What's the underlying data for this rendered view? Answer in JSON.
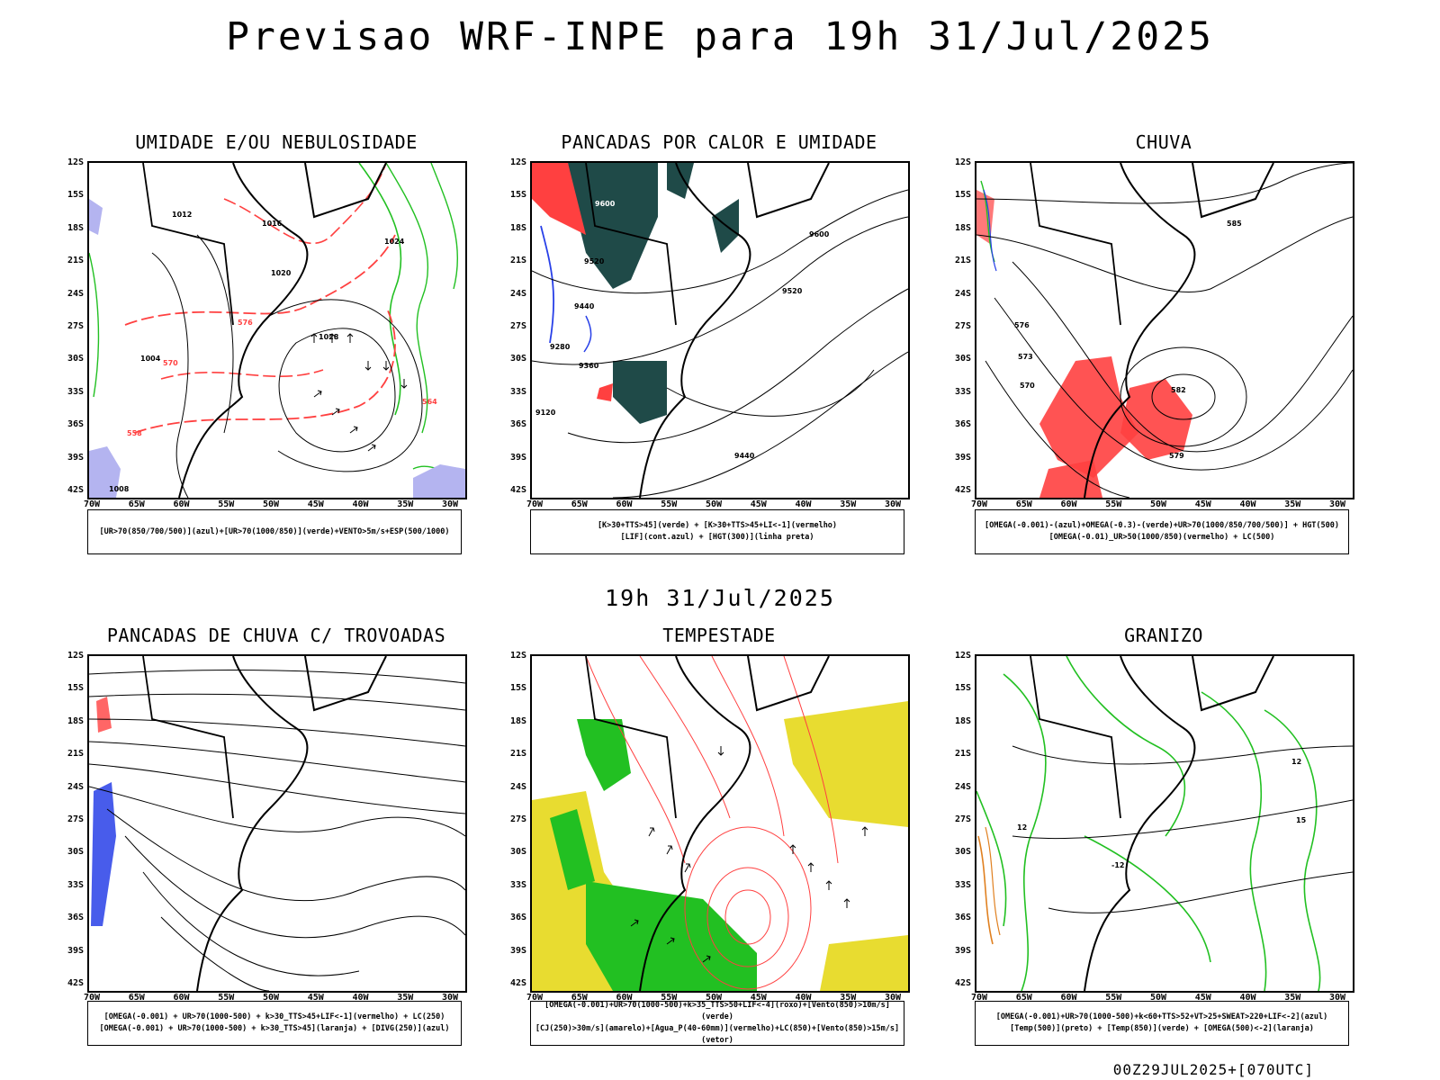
{
  "title": "Previsao WRF-INPE  para 19h 31/Jul/2025",
  "subtitle": "19h 31/Jul/2025",
  "footer": "00Z29JUL2025+[070UTC]",
  "lat_labels": [
    "12S",
    "15S",
    "18S",
    "21S",
    "24S",
    "27S",
    "30S",
    "33S",
    "36S",
    "39S",
    "42S"
  ],
  "lon_labels": [
    "70W",
    "65W",
    "60W",
    "55W",
    "50W",
    "45W",
    "40W",
    "35W",
    "30W"
  ],
  "panels": [
    {
      "title": "UMIDADE E/OU NEBULOSIDADE",
      "legend": [
        "[UR>70(850/700/500)](azul)+[UR>70(1000/850)](verde)+VENTO>5m/s+ESP(500/1000)"
      ],
      "labels": [
        "1012",
        "1016",
        "1020",
        "1024",
        "1028",
        "1008",
        "1004",
        "570",
        "576",
        "564",
        "558"
      ]
    },
    {
      "title": "PANCADAS POR CALOR E UMIDADE",
      "legend": [
        "[K>30+TTS>45](verde) + [K>30+TTS>45+LI<-1](vermelho)",
        "[LIF](cont.azul) + [HGT(300)](linha preta)"
      ],
      "labels": [
        "9600",
        "9520",
        "9440",
        "9360",
        "9280",
        "9120"
      ]
    },
    {
      "title": "CHUVA",
      "legend": [
        "[OMEGA(-0.001)-(azul)+OMEGA(-0.3)-(verde)+UR>70(1000/850/700/500)] + HGT(500)",
        "[OMEGA(-0.01)_UR>50(1000/850)(vermelho) + LC(500)"
      ],
      "labels": [
        "585",
        "582",
        "579",
        "576",
        "573",
        "570"
      ]
    },
    {
      "title": "PANCADAS DE CHUVA C/ TROVOADAS",
      "legend": [
        "[OMEGA(-0.001) + UR>70(1000-500) + k>30_TTS>45+LIF<-1](vermelho) + LC(250)",
        "[OMEGA(-0.001) + UR>70(1000-500) + k>30_TTS>45](laranja) + [DIVG(250)](azul)"
      ],
      "labels": []
    },
    {
      "title": "TEMPESTADE",
      "legend": [
        "[OMEGA(-0.001)+UR>70(1000-500)+k>35_TTS>50+LIF<-4](roxo)+[Vento(850)>10m/s](verde)",
        "[CJ(250)>30m/s](amarelo)+[Agua_P(40-60mm)](vermelho)+LC(850)+[Vento(850)>15m/s](vetor)"
      ],
      "labels": []
    },
    {
      "title": "GRANIZO",
      "legend": [
        "[OMEGA(-0.001)+UR>70(1000-500)+k<60+TTS>52+VT>25+SWEAT>220+LIF<-2](azul)",
        "[Temp(500)](preto) + [Temp(850)](verde) + [OMEGA(500)<-2](laranja)"
      ],
      "labels": [
        "12",
        "15",
        "-12"
      ]
    }
  ],
  "colors": {
    "border": "#000000",
    "green": "#22c022",
    "red": "#ff4040",
    "blue": "#2840e8",
    "darkteal": "#1f4a48",
    "yellow": "#e8dc30",
    "lavender": "#b4b4f0",
    "orange": "#e08020"
  }
}
